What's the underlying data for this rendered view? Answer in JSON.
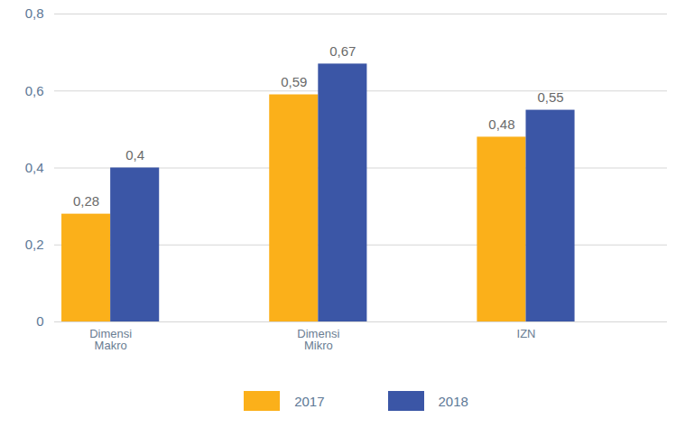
{
  "chart_data": {
    "type": "bar",
    "categories": [
      "Dimensi Makro",
      "Dimensi Mikro",
      "IZN"
    ],
    "series": [
      {
        "name": "2017",
        "color": "#fbb01a",
        "values": [
          0.28,
          0.59,
          0.48
        ],
        "value_labels": [
          "0,28",
          "0,59",
          "0,48"
        ]
      },
      {
        "name": "2018",
        "color": "#3b56a6",
        "values": [
          0.4,
          0.67,
          0.55
        ],
        "value_labels": [
          "0,4",
          "0,67",
          "0,55"
        ]
      }
    ],
    "ylim": [
      0,
      0.8
    ],
    "yticks": [
      {
        "value": 0,
        "label": "0"
      },
      {
        "value": 0.2,
        "label": "0,2"
      },
      {
        "value": 0.4,
        "label": "0,4"
      },
      {
        "value": 0.6,
        "label": "0,6"
      },
      {
        "value": 0.8,
        "label": "0,8"
      }
    ],
    "grid": true,
    "data_labels": true,
    "legend": "bottom"
  }
}
